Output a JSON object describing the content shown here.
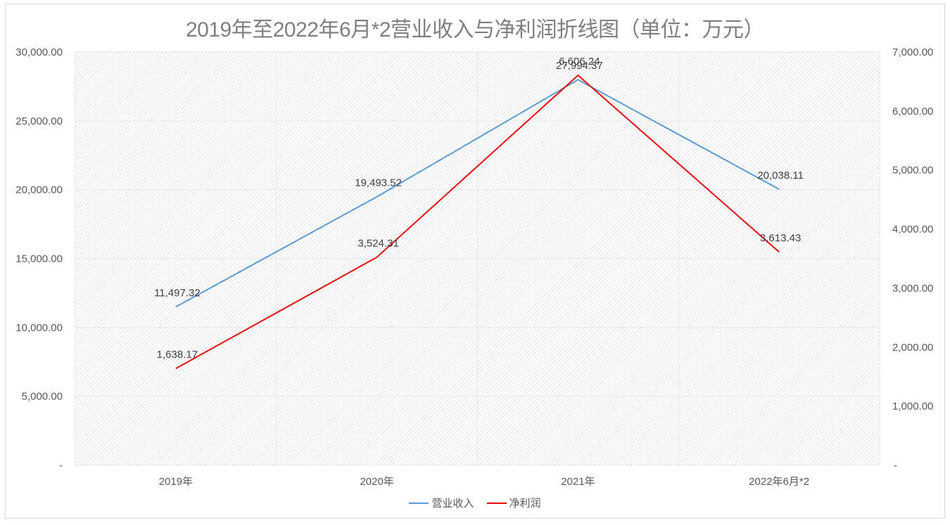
{
  "chart_title": "2019年至2022年6月*2营业收入与净利润折线图（单位：万元）",
  "colors": {
    "revenue": "#5b9bd5",
    "net_profit": "#e01010",
    "grid": "#e6e6e6",
    "hatch": "#d4d4d4",
    "text": "#595959"
  },
  "left_axis": {
    "ticks": [
      "30,000.00",
      "25,000.00",
      "20,000.00",
      "15,000.00",
      "10,000.00",
      "5,000.00",
      "-"
    ]
  },
  "right_axis": {
    "ticks": [
      "7,000.00",
      "6,000.00",
      "5,000.00",
      "4,000.00",
      "3,000.00",
      "2,000.00",
      "1,000.00",
      "-"
    ]
  },
  "categories": [
    "2019年",
    "2020年",
    "2021年",
    "2022年6月*2"
  ],
  "legend": {
    "revenue": "营业收入",
    "net_profit": "净利润"
  },
  "data_labels": {
    "revenue": [
      "11,497.32",
      "19,493.52",
      "27,994.37",
      "20,038.11"
    ],
    "net_profit": [
      "1,638.17",
      "3,524.31",
      "6,606.24",
      "3,613.43"
    ]
  },
  "chart_data": {
    "type": "line",
    "title": "2019年至2022年6月*2营业收入与净利润折线图（单位：万元）",
    "categories": [
      "2019年",
      "2020年",
      "2021年",
      "2022年6月*2"
    ],
    "series": [
      {
        "name": "营业收入",
        "axis": "left",
        "color": "#5b9bd5",
        "values": [
          11497.32,
          19493.52,
          27994.37,
          20038.11
        ]
      },
      {
        "name": "净利润",
        "axis": "right",
        "color": "#e01010",
        "values": [
          1638.17,
          3524.31,
          6606.24,
          3613.43
        ]
      }
    ],
    "xlabel": "",
    "ylabel": "",
    "ylim_left": [
      0,
      30000
    ],
    "ylim_right": [
      0,
      7000
    ],
    "left_tick_step": 5000,
    "right_tick_step": 1000,
    "grid": true,
    "legend_position": "bottom",
    "data_labels": true
  }
}
